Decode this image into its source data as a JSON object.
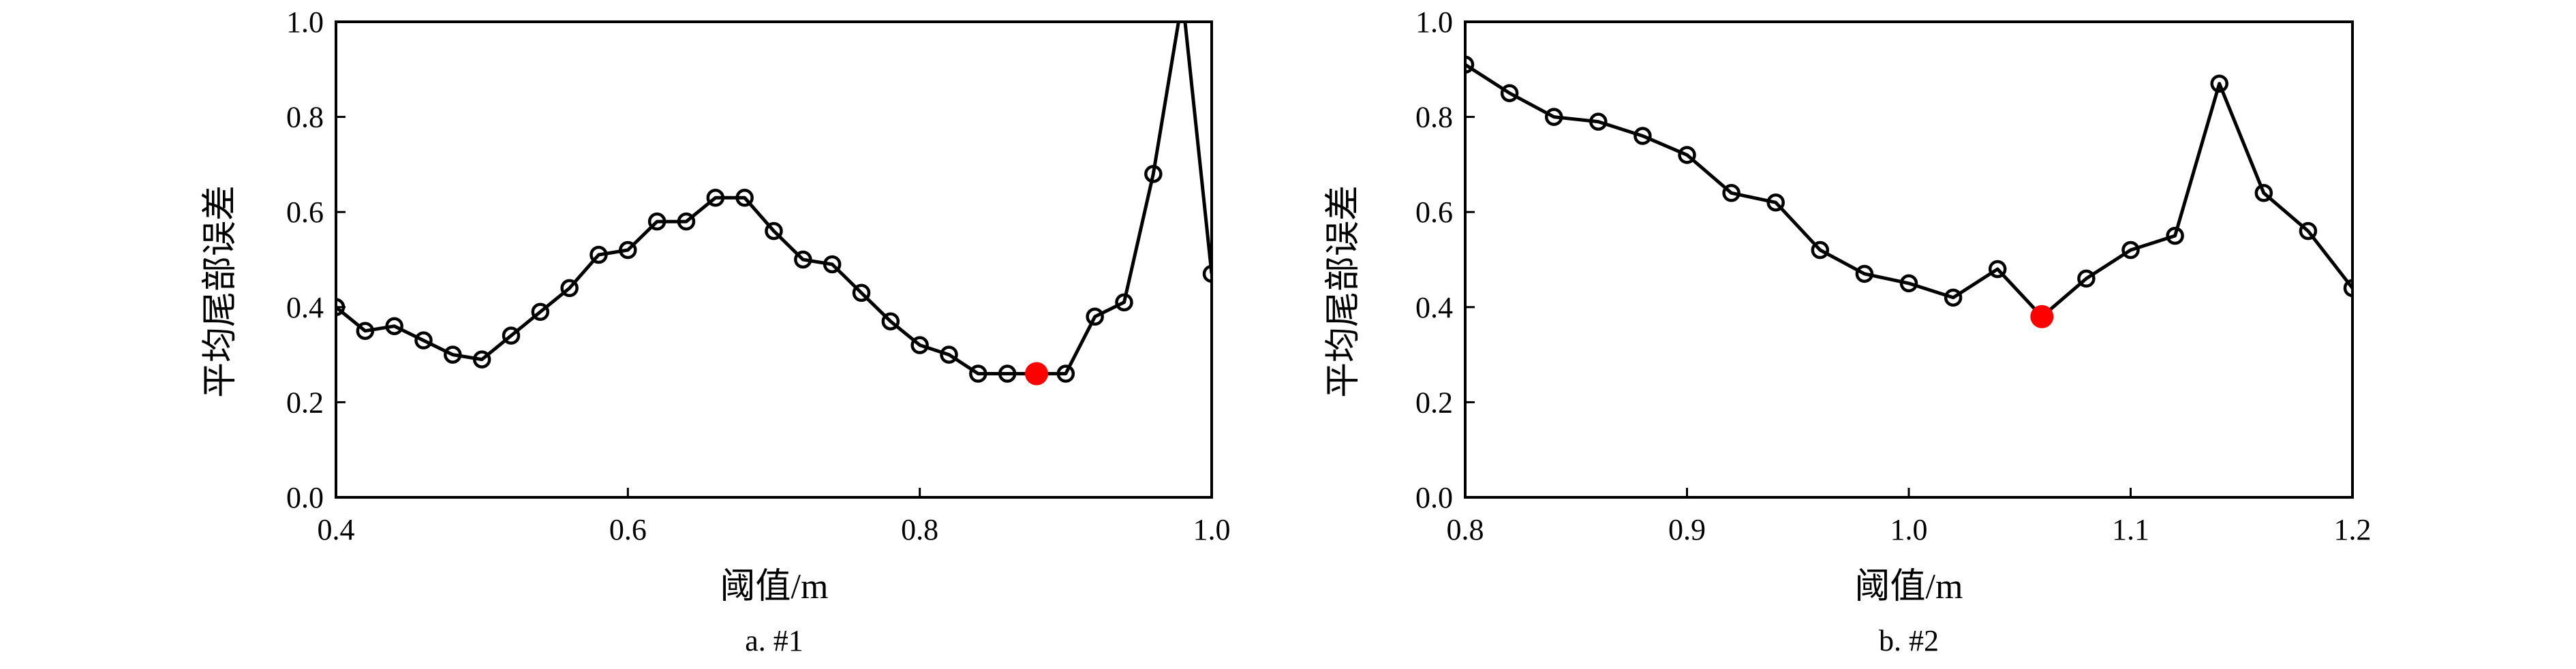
{
  "chart_data": [
    {
      "type": "line",
      "caption": "a. #1",
      "xlabel": "阈值/m",
      "ylabel": "平均尾部误差",
      "xlim": [
        0.4,
        1.0
      ],
      "ylim": [
        0.0,
        1.0
      ],
      "xticks": [
        "0.4",
        "0.6",
        "0.8",
        "1.0"
      ],
      "yticks": [
        "0.0",
        "0.2",
        "0.4",
        "0.6",
        "0.8",
        "1.0"
      ],
      "grid": false,
      "marker": "open-circle",
      "line_color": "#000000",
      "highlight_color": "#ff0000",
      "series": [
        {
          "x": [
            0.4,
            0.42,
            0.44,
            0.46,
            0.48,
            0.5,
            0.52,
            0.54,
            0.56,
            0.58,
            0.6,
            0.62,
            0.64,
            0.66,
            0.68,
            0.7,
            0.72,
            0.74,
            0.76,
            0.78,
            0.8,
            0.82,
            0.84,
            0.86,
            0.88,
            0.9,
            0.92,
            0.94,
            0.96,
            0.98,
            1.0
          ],
          "y": [
            0.4,
            0.35,
            0.36,
            0.33,
            0.3,
            0.29,
            0.34,
            0.39,
            0.44,
            0.51,
            0.52,
            0.58,
            0.58,
            0.63,
            0.63,
            0.56,
            0.5,
            0.49,
            0.43,
            0.37,
            0.32,
            0.3,
            0.26,
            0.26,
            0.26,
            0.26,
            0.38,
            0.41,
            0.68,
            1.05,
            0.47
          ]
        }
      ],
      "highlight": {
        "x": 0.88,
        "y": 0.26
      }
    },
    {
      "type": "line",
      "caption": "b. #2",
      "xlabel": "阈值/m",
      "ylabel": "平均尾部误差",
      "xlim": [
        0.8,
        1.2
      ],
      "ylim": [
        0.0,
        1.0
      ],
      "xticks": [
        "0.8",
        "0.9",
        "1.0",
        "1.1",
        "1.2"
      ],
      "yticks": [
        "0.0",
        "0.2",
        "0.4",
        "0.6",
        "0.8",
        "1.0"
      ],
      "grid": false,
      "marker": "open-circle",
      "line_color": "#000000",
      "highlight_color": "#ff0000",
      "series": [
        {
          "x": [
            0.8,
            0.82,
            0.84,
            0.86,
            0.88,
            0.9,
            0.92,
            0.94,
            0.96,
            0.98,
            1.0,
            1.02,
            1.04,
            1.06,
            1.08,
            1.1,
            1.12,
            1.14,
            1.16,
            1.18,
            1.2
          ],
          "y": [
            0.91,
            0.85,
            0.8,
            0.79,
            0.76,
            0.72,
            0.64,
            0.62,
            0.52,
            0.47,
            0.45,
            0.42,
            0.48,
            0.38,
            0.46,
            0.52,
            0.55,
            0.87,
            0.64,
            0.56,
            0.44
          ]
        }
      ],
      "highlight": {
        "x": 1.06,
        "y": 0.38
      }
    }
  ]
}
